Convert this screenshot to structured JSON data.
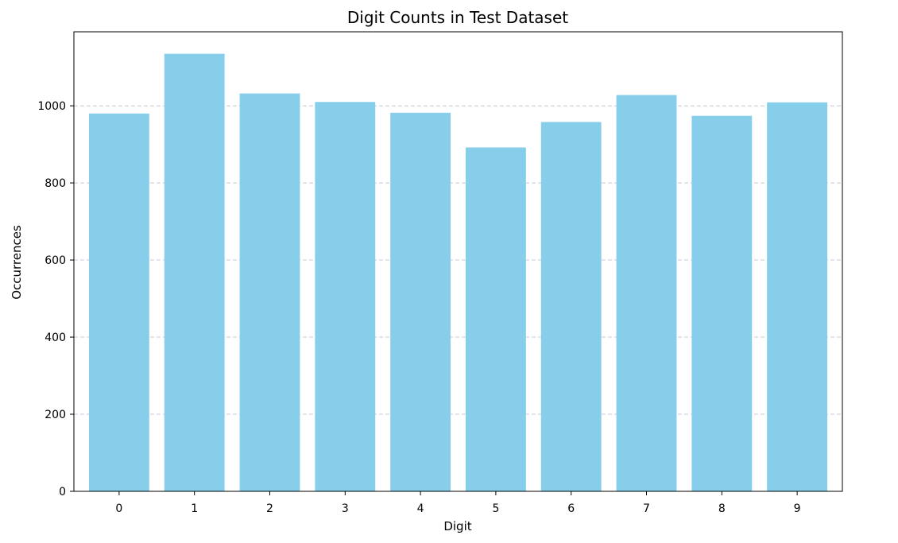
{
  "chart_data": {
    "type": "bar",
    "title": "Digit Counts in Test Dataset",
    "xlabel": "Digit",
    "ylabel": "Occurrences",
    "categories": [
      "0",
      "1",
      "2",
      "3",
      "4",
      "5",
      "6",
      "7",
      "8",
      "9"
    ],
    "values": [
      980,
      1135,
      1032,
      1010,
      982,
      892,
      958,
      1028,
      974,
      1009
    ],
    "ylim": [
      0,
      1192
    ],
    "yticks": [
      0,
      200,
      400,
      600,
      800,
      1000
    ],
    "grid": "y-dashed",
    "bar_color": "#87ceeb",
    "grid_color": "#c8c8d8",
    "axis_color": "#000000"
  }
}
